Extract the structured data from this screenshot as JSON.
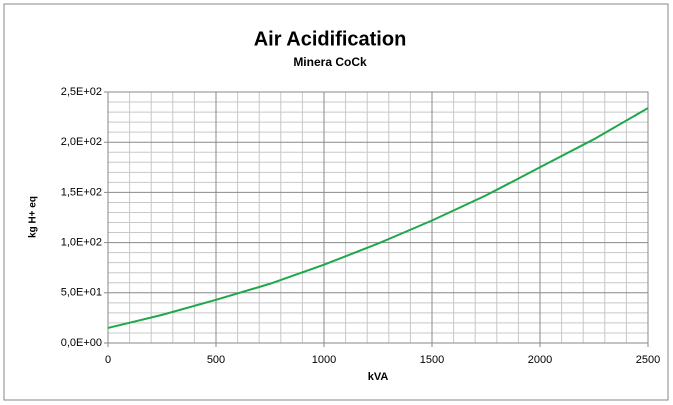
{
  "chart_data": {
    "type": "line",
    "title": "Air Acidification",
    "subtitle": "Minera CoCk",
    "xlabel": "kVA",
    "ylabel": "kg H+ eq",
    "x": [
      0,
      250,
      500,
      750,
      1000,
      1250,
      1500,
      1750,
      2000,
      2250,
      2500
    ],
    "series": [
      {
        "name": "Air Acidification",
        "color": "#1fa84a",
        "values": [
          15,
          28,
          43,
          59,
          78,
          99,
          122,
          147,
          175,
          203,
          234
        ]
      }
    ],
    "xlim": [
      0,
      2500
    ],
    "xticks": [
      0,
      500,
      1000,
      1500,
      2000,
      2500
    ],
    "ylim": [
      0,
      250
    ],
    "yticks": [
      {
        "value": 0,
        "label": "0,0E+00"
      },
      {
        "value": 50,
        "label": "5,0E+01"
      },
      {
        "value": 100,
        "label": "1,0E+02"
      },
      {
        "value": 150,
        "label": "1,5E+02"
      },
      {
        "value": 200,
        "label": "2,0E+02"
      },
      {
        "value": 250,
        "label": "2,5E+02"
      }
    ],
    "xminorticks": [
      100,
      200,
      300,
      400,
      600,
      700,
      800,
      900,
      1100,
      1200,
      1300,
      1400,
      1600,
      1700,
      1800,
      1900,
      2100,
      2200,
      2300,
      2400
    ],
    "yminorticks": [
      10,
      20,
      30,
      40,
      60,
      70,
      80,
      90,
      110,
      120,
      130,
      140,
      160,
      170,
      180,
      190,
      210,
      220,
      230,
      240
    ],
    "grid": true
  }
}
